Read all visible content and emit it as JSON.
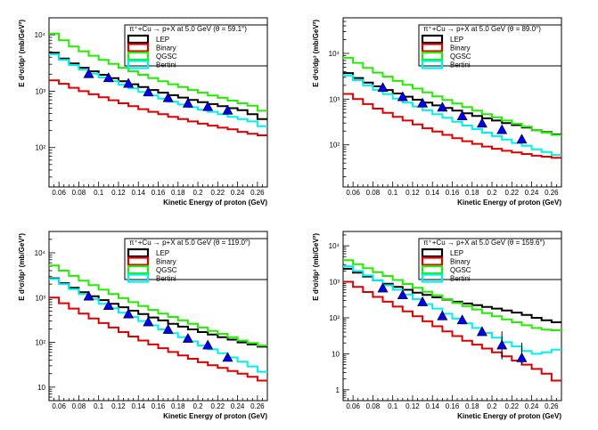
{
  "colors": {
    "LEP": "#000000",
    "Binary": "#e00000",
    "QGSC": "#22ee00",
    "Bertini": "#00f0f0",
    "data": "#0000ee"
  },
  "chart_data": [
    {
      "type": "line",
      "title": "π⁺+Cu → p+X at 5.0 GeV (θ =  59.1°)",
      "xlabel": "Kinetic Energy of proton (GeV)",
      "ylabel": "E d³σ/dp³ (mb/GeV²)",
      "xlim": [
        0.05,
        0.27
      ],
      "ylim": [
        20,
        20000
      ],
      "yscale": "log",
      "xticks": [
        0.06,
        0.08,
        0.1,
        0.12,
        0.14,
        0.16,
        0.18,
        0.2,
        0.22,
        0.24,
        0.26
      ],
      "xtick_labels": [
        "0.06",
        "0.08",
        "0.1",
        "0.12",
        "0.14",
        "0.16",
        "0.18",
        "0.2",
        "0.22",
        "0.24",
        "0.26"
      ],
      "yticks": [
        100,
        1000,
        10000
      ],
      "ytick_labels": [
        "10²",
        "10³",
        "10⁴"
      ],
      "legend_position": "top-right",
      "bin_edges": [
        0.05,
        0.06,
        0.07,
        0.08,
        0.09,
        0.1,
        0.11,
        0.12,
        0.13,
        0.14,
        0.15,
        0.16,
        0.17,
        0.18,
        0.19,
        0.2,
        0.21,
        0.22,
        0.23,
        0.24,
        0.25,
        0.26,
        0.27
      ],
      "series": [
        {
          "name": "LEP",
          "values": [
            4800,
            3800,
            3100,
            2600,
            2250,
            1950,
            1700,
            1500,
            1330,
            1180,
            1050,
            940,
            850,
            770,
            700,
            640,
            590,
            540,
            500,
            460,
            390,
            320
          ]
        },
        {
          "name": "Binary",
          "values": [
            1550,
            1350,
            1150,
            1000,
            880,
            780,
            690,
            610,
            540,
            480,
            430,
            390,
            350,
            320,
            290,
            265,
            245,
            225,
            210,
            190,
            175,
            165
          ]
        },
        {
          "name": "QGSC",
          "values": [
            10500,
            8000,
            6200,
            5100,
            4250,
            3600,
            3050,
            2600,
            2250,
            1950,
            1700,
            1500,
            1330,
            1180,
            1050,
            940,
            840,
            760,
            680,
            610,
            550,
            450
          ]
        },
        {
          "name": "Bertini",
          "values": [
            4500,
            3600,
            2900,
            2400,
            2050,
            1750,
            1500,
            1300,
            1120,
            970,
            840,
            740,
            650,
            580,
            520,
            470,
            430,
            390,
            350,
            320,
            290,
            240
          ]
        }
      ],
      "points": {
        "name": "data",
        "x": [
          0.09,
          0.11,
          0.13,
          0.15,
          0.17,
          0.19,
          0.21,
          0.23
        ],
        "y": [
          2000,
          1700,
          1350,
          950,
          750,
          600,
          520,
          450
        ]
      }
    },
    {
      "type": "line",
      "title": "π⁺+Cu → p+X at 5.0 GeV (θ =  89.0°)",
      "xlabel": "Kinetic Energy of proton (GeV)",
      "ylabel": "E d³σ/dp³ (mb/GeV²)",
      "xlim": [
        0.05,
        0.27
      ],
      "ylim": [
        12,
        60000
      ],
      "yscale": "log",
      "xticks": [
        0.06,
        0.08,
        0.1,
        0.12,
        0.14,
        0.16,
        0.18,
        0.2,
        0.22,
        0.24,
        0.26
      ],
      "xtick_labels": [
        "0.06",
        "0.08",
        "0.1",
        "0.12",
        "0.14",
        "0.16",
        "0.18",
        "0.2",
        "0.22",
        "0.24",
        "0.26"
      ],
      "yticks": [
        100,
        1000,
        10000
      ],
      "ytick_labels": [
        "10²",
        "10³",
        "10⁴"
      ],
      "legend_position": "top-right",
      "bin_edges": [
        0.05,
        0.06,
        0.07,
        0.08,
        0.09,
        0.1,
        0.11,
        0.12,
        0.13,
        0.14,
        0.15,
        0.16,
        0.17,
        0.18,
        0.19,
        0.2,
        0.21,
        0.22,
        0.23,
        0.24,
        0.25,
        0.26,
        0.27
      ],
      "series": [
        {
          "name": "LEP",
          "values": [
            3700,
            2900,
            2300,
            1900,
            1580,
            1330,
            1130,
            970,
            840,
            730,
            640,
            560,
            490,
            430,
            380,
            340,
            300,
            270,
            240,
            210,
            190,
            170
          ]
        },
        {
          "name": "Binary",
          "values": [
            1300,
            1000,
            780,
            620,
            500,
            410,
            340,
            280,
            230,
            195,
            165,
            140,
            120,
            105,
            92,
            82,
            74,
            68,
            63,
            58,
            55,
            52
          ]
        },
        {
          "name": "QGSC",
          "values": [
            8000,
            6200,
            4800,
            3800,
            3100,
            2500,
            2050,
            1700,
            1400,
            1150,
            960,
            800,
            670,
            560,
            470,
            400,
            340,
            290,
            250,
            210,
            185,
            165
          ]
        },
        {
          "name": "Bertini",
          "values": [
            3300,
            2600,
            2000,
            1600,
            1280,
            1030,
            840,
            690,
            570,
            470,
            390,
            320,
            265,
            220,
            185,
            155,
            130,
            110,
            95,
            80,
            70,
            60
          ]
        }
      ],
      "points": {
        "name": "data",
        "x": [
          0.09,
          0.11,
          0.13,
          0.15,
          0.17,
          0.19,
          0.21,
          0.23
        ],
        "y": [
          1750,
          1100,
          800,
          650,
          420,
          290,
          210,
          130
        ]
      }
    },
    {
      "type": "line",
      "title": "π⁺+Cu → p+X at 5.0 GeV (θ = 119.0°)",
      "xlabel": "Kinetic Energy of proton (GeV)",
      "ylabel": "E d³σ/dp³ (mb/GeV²)",
      "xlim": [
        0.05,
        0.27
      ],
      "ylim": [
        5,
        30000
      ],
      "yscale": "log",
      "xticks": [
        0.06,
        0.08,
        0.1,
        0.12,
        0.14,
        0.16,
        0.18,
        0.2,
        0.22,
        0.24,
        0.26
      ],
      "xtick_labels": [
        "0.06",
        "0.08",
        "0.1",
        "0.12",
        "0.14",
        "0.16",
        "0.18",
        "0.2",
        "0.22",
        "0.24",
        "0.26"
      ],
      "yticks": [
        10,
        100,
        1000,
        10000
      ],
      "ytick_labels": [
        "10",
        "10²",
        "10³",
        "10⁴"
      ],
      "legend_position": "top-right",
      "bin_edges": [
        0.05,
        0.06,
        0.07,
        0.08,
        0.09,
        0.1,
        0.11,
        0.12,
        0.13,
        0.14,
        0.15,
        0.16,
        0.17,
        0.18,
        0.19,
        0.2,
        0.21,
        0.22,
        0.23,
        0.24,
        0.25,
        0.26,
        0.27
      ],
      "series": [
        {
          "name": "LEP",
          "values": [
            2700,
            2100,
            1650,
            1320,
            1070,
            880,
            730,
            610,
            510,
            430,
            360,
            310,
            260,
            225,
            195,
            170,
            150,
            130,
            115,
            100,
            90,
            80
          ]
        },
        {
          "name": "Binary",
          "values": [
            1000,
            750,
            570,
            440,
            340,
            270,
            215,
            170,
            135,
            110,
            90,
            74,
            61,
            51,
            43,
            36,
            31,
            27,
            23,
            20,
            17,
            14
          ]
        },
        {
          "name": "QGSC",
          "values": [
            5200,
            4000,
            3050,
            2400,
            1900,
            1500,
            1200,
            970,
            790,
            650,
            530,
            440,
            370,
            310,
            260,
            215,
            180,
            155,
            130,
            110,
            97,
            85
          ]
        },
        {
          "name": "Bertini",
          "values": [
            2600,
            2000,
            1550,
            1200,
            930,
            730,
            580,
            460,
            370,
            300,
            240,
            195,
            160,
            130,
            105,
            85,
            70,
            57,
            46,
            37,
            29,
            22
          ]
        }
      ],
      "points": {
        "name": "data",
        "x": [
          0.09,
          0.11,
          0.13,
          0.15,
          0.17,
          0.19,
          0.21,
          0.23
        ],
        "y": [
          1050,
          650,
          420,
          280,
          190,
          120,
          85,
          45
        ]
      }
    },
    {
      "type": "line",
      "title": "π⁺+Cu → p+X at 5.0 GeV (θ = 159.6°)",
      "xlabel": "Kinetic Energy of proton (GeV)",
      "ylabel": "E d³σ/dp³ (mb/GeV²)",
      "xlim": [
        0.05,
        0.27
      ],
      "ylim": [
        0.5,
        25000
      ],
      "yscale": "log",
      "xticks": [
        0.06,
        0.08,
        0.1,
        0.12,
        0.14,
        0.16,
        0.18,
        0.2,
        0.22,
        0.24,
        0.26
      ],
      "xtick_labels": [
        "0.06",
        "0.08",
        "0.1",
        "0.12",
        "0.14",
        "0.16",
        "0.18",
        "0.2",
        "0.22",
        "0.24",
        "0.26"
      ],
      "yticks": [
        1,
        10,
        100,
        1000,
        10000
      ],
      "ytick_labels": [
        "1",
        "10",
        "10²",
        "10³",
        "10⁴"
      ],
      "legend_position": "top-right",
      "bin_edges": [
        0.05,
        0.06,
        0.07,
        0.08,
        0.09,
        0.1,
        0.11,
        0.12,
        0.13,
        0.14,
        0.15,
        0.16,
        0.17,
        0.18,
        0.19,
        0.2,
        0.21,
        0.22,
        0.23,
        0.24,
        0.25,
        0.26,
        0.27
      ],
      "series": [
        {
          "name": "LEP",
          "values": [
            2300,
            1800,
            1400,
            1100,
            880,
            720,
            600,
            500,
            430,
            370,
            320,
            280,
            250,
            225,
            200,
            180,
            160,
            140,
            120,
            100,
            85,
            75
          ]
        },
        {
          "name": "Binary",
          "values": [
            1000,
            720,
            520,
            380,
            280,
            205,
            150,
            110,
            80,
            58,
            42,
            31,
            23,
            18,
            14,
            11,
            8.5,
            6.5,
            5,
            3.8,
            2.8,
            1.8
          ]
        },
        {
          "name": "QGSC",
          "values": [
            4000,
            3100,
            2400,
            1850,
            1450,
            1120,
            870,
            680,
            530,
            420,
            330,
            260,
            210,
            170,
            135,
            110,
            90,
            75,
            62,
            52,
            47,
            45
          ]
        },
        {
          "name": "Bertini",
          "values": [
            2700,
            2000,
            1500,
            1100,
            800,
            600,
            440,
            330,
            240,
            180,
            130,
            95,
            70,
            52,
            38,
            28,
            21,
            16,
            12,
            10,
            11,
            13
          ]
        }
      ],
      "points": {
        "name": "data",
        "x": [
          0.09,
          0.11,
          0.13,
          0.15,
          0.17,
          0.19,
          0.21,
          0.23
        ],
        "y": [
          650,
          420,
          270,
          110,
          85,
          40,
          17,
          7.5
        ],
        "err_low": [
          0,
          0,
          0,
          0,
          0,
          0,
          10,
          2.5
        ],
        "err_high": [
          0,
          0,
          0,
          0,
          0,
          0,
          25,
          13
        ]
      }
    }
  ]
}
